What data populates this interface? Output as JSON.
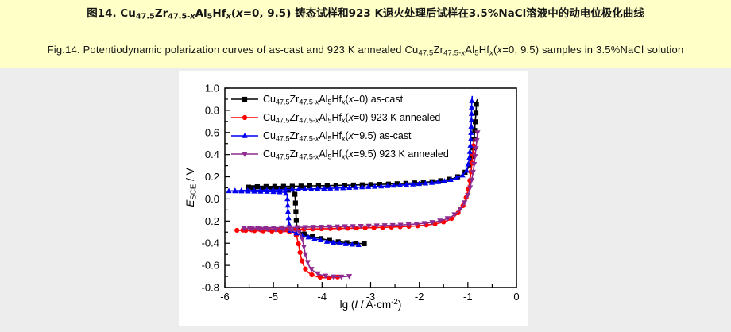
{
  "banner": {
    "background": "#FFFFC8",
    "title_zh": [
      {
        "t": "图14. Cu"
      },
      {
        "sub": "47.5"
      },
      {
        "t": "Zr"
      },
      {
        "sub": "47.5-"
      },
      {
        "isub": "x"
      },
      {
        "t": "Al"
      },
      {
        "sub": "5"
      },
      {
        "t": "Hf"
      },
      {
        "isub": "x"
      },
      {
        "t": "("
      },
      {
        "i": "x"
      },
      {
        "t": "=0, 9.5) 铸态试样和923 K退火处理后试样在3.5%NaCl溶液中的动电位极化曲线"
      }
    ],
    "title_en": [
      {
        "t": "Fig.14. Potentiodynamic polarization curves of as-cast and 923 K annealed Cu"
      },
      {
        "sub": "47.5"
      },
      {
        "t": "Zr"
      },
      {
        "sub": "47.5-"
      },
      {
        "isub": "x"
      },
      {
        "t": "Al"
      },
      {
        "sub": "5"
      },
      {
        "t": "Hf"
      },
      {
        "isub": "x"
      },
      {
        "t": "("
      },
      {
        "i": "x"
      },
      {
        "t": "=0, 9.5) samples in 3.5%NaCl solution"
      }
    ]
  },
  "chart_data": {
    "type": "line",
    "title": "",
    "xlabel_segments": [
      {
        "t": "lg ("
      },
      {
        "i": "I"
      },
      {
        "t": " / A·cm"
      },
      {
        "sup": "-2"
      },
      {
        "t": ")"
      }
    ],
    "ylabel_segments": [
      {
        "i": "E"
      },
      {
        "sub": "SCE"
      },
      {
        "t": " / V"
      }
    ],
    "xlim": [
      -6,
      0
    ],
    "ylim": [
      -0.8,
      1.0
    ],
    "x_major_ticks": [
      -6,
      -5,
      -4,
      -3,
      -2,
      -1,
      0
    ],
    "x_tick_labels": [
      "-6",
      "-5",
      "-4",
      "-3",
      "-2",
      "-1",
      "0"
    ],
    "x_minor_step": 0.5,
    "y_major_ticks": [
      1.0,
      0.8,
      0.6,
      0.4,
      0.2,
      0.0,
      -0.2,
      -0.4,
      -0.6,
      -0.8
    ],
    "y_tick_labels": [
      "1.0",
      "0.8",
      "0.6",
      "0.4",
      "0.2",
      "0.0",
      "-0.2",
      "-0.4",
      "-0.6",
      "-0.8"
    ],
    "y_minor_step": 0.1,
    "grid": false,
    "legend_position": "top-left",
    "frame_color": "#000000",
    "series": [
      {
        "name_segments": [
          {
            "t": "Cu"
          },
          {
            "sub": "47.5"
          },
          {
            "t": "Zr"
          },
          {
            "sub": "47.5-"
          },
          {
            "isub": "x"
          },
          {
            "t": "Al"
          },
          {
            "sub": "5"
          },
          {
            "t": "Hf"
          },
          {
            "isub": "x"
          },
          {
            "t": "("
          },
          {
            "i": "x"
          },
          {
            "t": "=0) as-cast"
          }
        ],
        "color": "#000000",
        "marker": "square",
        "points": [
          [
            -3.13,
            -0.405
          ],
          [
            -3.3,
            -0.4
          ],
          [
            -3.5,
            -0.395
          ],
          [
            -3.7,
            -0.385
          ],
          [
            -3.9,
            -0.37
          ],
          [
            -4.1,
            -0.35
          ],
          [
            -4.25,
            -0.335
          ],
          [
            -4.38,
            -0.315
          ],
          [
            -4.47,
            -0.295
          ],
          [
            -4.51,
            -0.275
          ],
          [
            -4.53,
            -0.2
          ],
          [
            -4.54,
            -0.1
          ],
          [
            -4.55,
            -0.02
          ],
          [
            -4.56,
            0.05
          ],
          [
            -4.6,
            0.075
          ],
          [
            -4.8,
            0.085
          ],
          [
            -5.1,
            0.095
          ],
          [
            -5.35,
            0.1
          ],
          [
            -5.55,
            0.105
          ],
          [
            -5.35,
            0.11
          ],
          [
            -5.1,
            0.112
          ],
          [
            -4.8,
            0.113
          ],
          [
            -4.5,
            0.115
          ],
          [
            -4.2,
            0.118
          ],
          [
            -3.9,
            0.12
          ],
          [
            -3.5,
            0.124
          ],
          [
            -3.1,
            0.128
          ],
          [
            -2.7,
            0.133
          ],
          [
            -2.3,
            0.14
          ],
          [
            -2.0,
            0.147
          ],
          [
            -1.75,
            0.155
          ],
          [
            -1.5,
            0.168
          ],
          [
            -1.3,
            0.185
          ],
          [
            -1.15,
            0.21
          ],
          [
            -1.03,
            0.25
          ],
          [
            -0.95,
            0.32
          ],
          [
            -0.9,
            0.42
          ],
          [
            -0.87,
            0.55
          ],
          [
            -0.85,
            0.68
          ],
          [
            -0.83,
            0.8
          ],
          [
            -0.82,
            0.88
          ],
          [
            -0.8,
            0.9
          ]
        ]
      },
      {
        "name_segments": [
          {
            "t": "Cu"
          },
          {
            "sub": "47.5"
          },
          {
            "t": "Zr"
          },
          {
            "sub": "47.5-"
          },
          {
            "isub": "x"
          },
          {
            "t": "Al"
          },
          {
            "sub": "5"
          },
          {
            "t": "Hf"
          },
          {
            "isub": "x"
          },
          {
            "t": "("
          },
          {
            "i": "x"
          },
          {
            "t": "=0) 923 K annealed"
          }
        ],
        "color": "#FF0000",
        "marker": "circle",
        "points": [
          [
            -3.68,
            -0.705
          ],
          [
            -3.82,
            -0.712
          ],
          [
            -3.96,
            -0.712
          ],
          [
            -4.1,
            -0.703
          ],
          [
            -4.2,
            -0.688
          ],
          [
            -4.28,
            -0.665
          ],
          [
            -4.34,
            -0.635
          ],
          [
            -4.38,
            -0.6
          ],
          [
            -4.42,
            -0.55
          ],
          [
            -4.45,
            -0.49
          ],
          [
            -4.48,
            -0.42
          ],
          [
            -4.51,
            -0.36
          ],
          [
            -4.54,
            -0.315
          ],
          [
            -4.6,
            -0.298
          ],
          [
            -4.85,
            -0.292
          ],
          [
            -5.15,
            -0.289
          ],
          [
            -5.45,
            -0.286
          ],
          [
            -5.78,
            -0.283
          ],
          [
            -5.45,
            -0.28
          ],
          [
            -5.1,
            -0.278
          ],
          [
            -4.75,
            -0.276
          ],
          [
            -4.4,
            -0.273
          ],
          [
            -4.05,
            -0.27
          ],
          [
            -3.7,
            -0.267
          ],
          [
            -3.35,
            -0.264
          ],
          [
            -3.0,
            -0.26
          ],
          [
            -2.65,
            -0.256
          ],
          [
            -2.35,
            -0.251
          ],
          [
            -2.1,
            -0.245
          ],
          [
            -1.88,
            -0.237
          ],
          [
            -1.68,
            -0.226
          ],
          [
            -1.52,
            -0.211
          ],
          [
            -1.38,
            -0.189
          ],
          [
            -1.27,
            -0.158
          ],
          [
            -1.18,
            -0.117
          ],
          [
            -1.1,
            -0.062
          ],
          [
            -1.04,
            0.005
          ],
          [
            -0.99,
            0.09
          ],
          [
            -0.95,
            0.19
          ],
          [
            -0.92,
            0.3
          ],
          [
            -0.9,
            0.4
          ],
          [
            -0.885,
            0.48
          ],
          [
            -0.875,
            0.54
          ]
        ]
      },
      {
        "name_segments": [
          {
            "t": "Cu"
          },
          {
            "sub": "47.5"
          },
          {
            "t": "Zr"
          },
          {
            "sub": "47.5-"
          },
          {
            "isub": "x"
          },
          {
            "t": "Al"
          },
          {
            "sub": "5"
          },
          {
            "t": "Hf"
          },
          {
            "isub": "x"
          },
          {
            "t": "("
          },
          {
            "i": "x"
          },
          {
            "t": "=9.5) as-cast"
          }
        ],
        "color": "#0000EE",
        "marker": "triangle-up",
        "points": [
          [
            -3.25,
            -0.415
          ],
          [
            -3.45,
            -0.41
          ],
          [
            -3.65,
            -0.4
          ],
          [
            -3.85,
            -0.39
          ],
          [
            -4.05,
            -0.37
          ],
          [
            -4.25,
            -0.35
          ],
          [
            -4.45,
            -0.325
          ],
          [
            -4.58,
            -0.3
          ],
          [
            -4.65,
            -0.285
          ],
          [
            -4.68,
            -0.22
          ],
          [
            -4.7,
            -0.12
          ],
          [
            -4.71,
            -0.02
          ],
          [
            -4.72,
            0.04
          ],
          [
            -4.78,
            0.06
          ],
          [
            -5.0,
            0.065
          ],
          [
            -5.3,
            0.068
          ],
          [
            -5.6,
            0.07
          ],
          [
            -5.92,
            0.072
          ],
          [
            -5.6,
            0.076
          ],
          [
            -5.25,
            0.079
          ],
          [
            -4.9,
            0.082
          ],
          [
            -4.55,
            0.086
          ],
          [
            -4.2,
            0.09
          ],
          [
            -3.85,
            0.095
          ],
          [
            -3.5,
            0.1
          ],
          [
            -3.1,
            0.108
          ],
          [
            -2.7,
            0.116
          ],
          [
            -2.3,
            0.127
          ],
          [
            -2.0,
            0.136
          ],
          [
            -1.7,
            0.148
          ],
          [
            -1.45,
            0.163
          ],
          [
            -1.25,
            0.185
          ],
          [
            -1.1,
            0.215
          ],
          [
            -1.02,
            0.26
          ],
          [
            -0.98,
            0.34
          ],
          [
            -0.95,
            0.46
          ],
          [
            -0.935,
            0.6
          ],
          [
            -0.925,
            0.74
          ],
          [
            -0.92,
            0.86
          ],
          [
            -0.91,
            0.93
          ]
        ]
      },
      {
        "name_segments": [
          {
            "t": "Cu"
          },
          {
            "sub": "47.5"
          },
          {
            "t": "Zr"
          },
          {
            "sub": "47.5-"
          },
          {
            "isub": "x"
          },
          {
            "t": "Al"
          },
          {
            "sub": "5"
          },
          {
            "t": "Hf"
          },
          {
            "isub": "x"
          },
          {
            "t": "("
          },
          {
            "i": "x"
          },
          {
            "t": "=9.5) 923 K annealed"
          }
        ],
        "color": "#8E2A8E",
        "marker": "triangle-down",
        "points": [
          [
            -3.44,
            -0.698
          ],
          [
            -3.58,
            -0.703
          ],
          [
            -3.74,
            -0.703
          ],
          [
            -3.9,
            -0.697
          ],
          [
            -4.02,
            -0.686
          ],
          [
            -4.12,
            -0.668
          ],
          [
            -4.2,
            -0.643
          ],
          [
            -4.26,
            -0.61
          ],
          [
            -4.3,
            -0.565
          ],
          [
            -4.34,
            -0.505
          ],
          [
            -4.37,
            -0.44
          ],
          [
            -4.4,
            -0.375
          ],
          [
            -4.43,
            -0.325
          ],
          [
            -4.47,
            -0.295
          ],
          [
            -4.55,
            -0.285
          ],
          [
            -4.85,
            -0.278
          ],
          [
            -5.15,
            -0.272
          ],
          [
            -5.45,
            -0.268
          ],
          [
            -5.63,
            -0.265
          ],
          [
            -5.35,
            -0.262
          ],
          [
            -5.05,
            -0.26
          ],
          [
            -4.72,
            -0.258
          ],
          [
            -4.4,
            -0.256
          ],
          [
            -4.05,
            -0.253
          ],
          [
            -3.7,
            -0.25
          ],
          [
            -3.35,
            -0.247
          ],
          [
            -3.0,
            -0.243
          ],
          [
            -2.65,
            -0.239
          ],
          [
            -2.35,
            -0.234
          ],
          [
            -2.08,
            -0.227
          ],
          [
            -1.85,
            -0.218
          ],
          [
            -1.64,
            -0.205
          ],
          [
            -1.47,
            -0.186
          ],
          [
            -1.33,
            -0.159
          ],
          [
            -1.22,
            -0.122
          ],
          [
            -1.12,
            -0.072
          ],
          [
            -1.04,
            -0.01
          ],
          [
            -0.97,
            0.07
          ],
          [
            -0.92,
            0.17
          ],
          [
            -0.88,
            0.28
          ],
          [
            -0.85,
            0.39
          ],
          [
            -0.825,
            0.49
          ],
          [
            -0.81,
            0.56
          ],
          [
            -0.8,
            0.61
          ]
        ]
      }
    ]
  }
}
